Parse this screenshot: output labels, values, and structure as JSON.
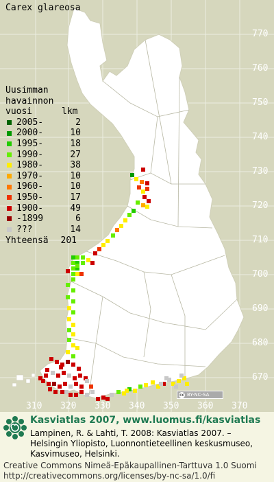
{
  "map": {
    "title": "Carex glareosa",
    "legend": {
      "header": [
        "Uusimman",
        "havainnon",
        "vuosi"
      ],
      "count_header": "lkm",
      "items": [
        {
          "label": "2005-",
          "count": "2",
          "color": "#006400"
        },
        {
          "label": "2000-",
          "count": "10",
          "color": "#009900"
        },
        {
          "label": "1995-",
          "count": "18",
          "color": "#22cc00"
        },
        {
          "label": "1990-",
          "count": "27",
          "color": "#66ee00"
        },
        {
          "label": "1980-",
          "count": "38",
          "color": "#ffee00"
        },
        {
          "label": "1970-",
          "count": "10",
          "color": "#ffaa00"
        },
        {
          "label": "1960-",
          "count": "10",
          "color": "#ff7700"
        },
        {
          "label": "1950-",
          "count": "17",
          "color": "#ee3300"
        },
        {
          "label": "1900-",
          "count": "49",
          "color": "#cc0000"
        },
        {
          "label": "-1899",
          "count": "6",
          "color": "#990000"
        },
        {
          "label": "???",
          "count": "14",
          "color": "#c8c8c8"
        }
      ],
      "total_label": "Yhteensä",
      "total_count": "201"
    },
    "lat_labels": [
      "770",
      "760",
      "750",
      "740",
      "730",
      "720",
      "710",
      "700",
      "690",
      "680",
      "670"
    ],
    "lon_labels": [
      "310",
      "320",
      "330",
      "340",
      "350",
      "360",
      "370"
    ],
    "cc_badge": "BY-NC-SA",
    "cc_symbol": "cc"
  },
  "footer": {
    "brand": "Kasviatlas 2007, www.luomus.fi/kasviatlas",
    "citation": [
      "Lampinen, R. & Lahti, T. 2008: Kasviatlas 2007. –",
      "Helsingin Yliopisto, Luonnontieteellinen keskusmuseo,",
      "Kasvimuseo, Helsinki."
    ],
    "license": [
      "Creative Commons Nimeä-Epäkaupallinen-Tarttuva 1.0 Suomi",
      "http://creativecommons.org/licenses/by-nc-sa/1.0/fi"
    ]
  }
}
